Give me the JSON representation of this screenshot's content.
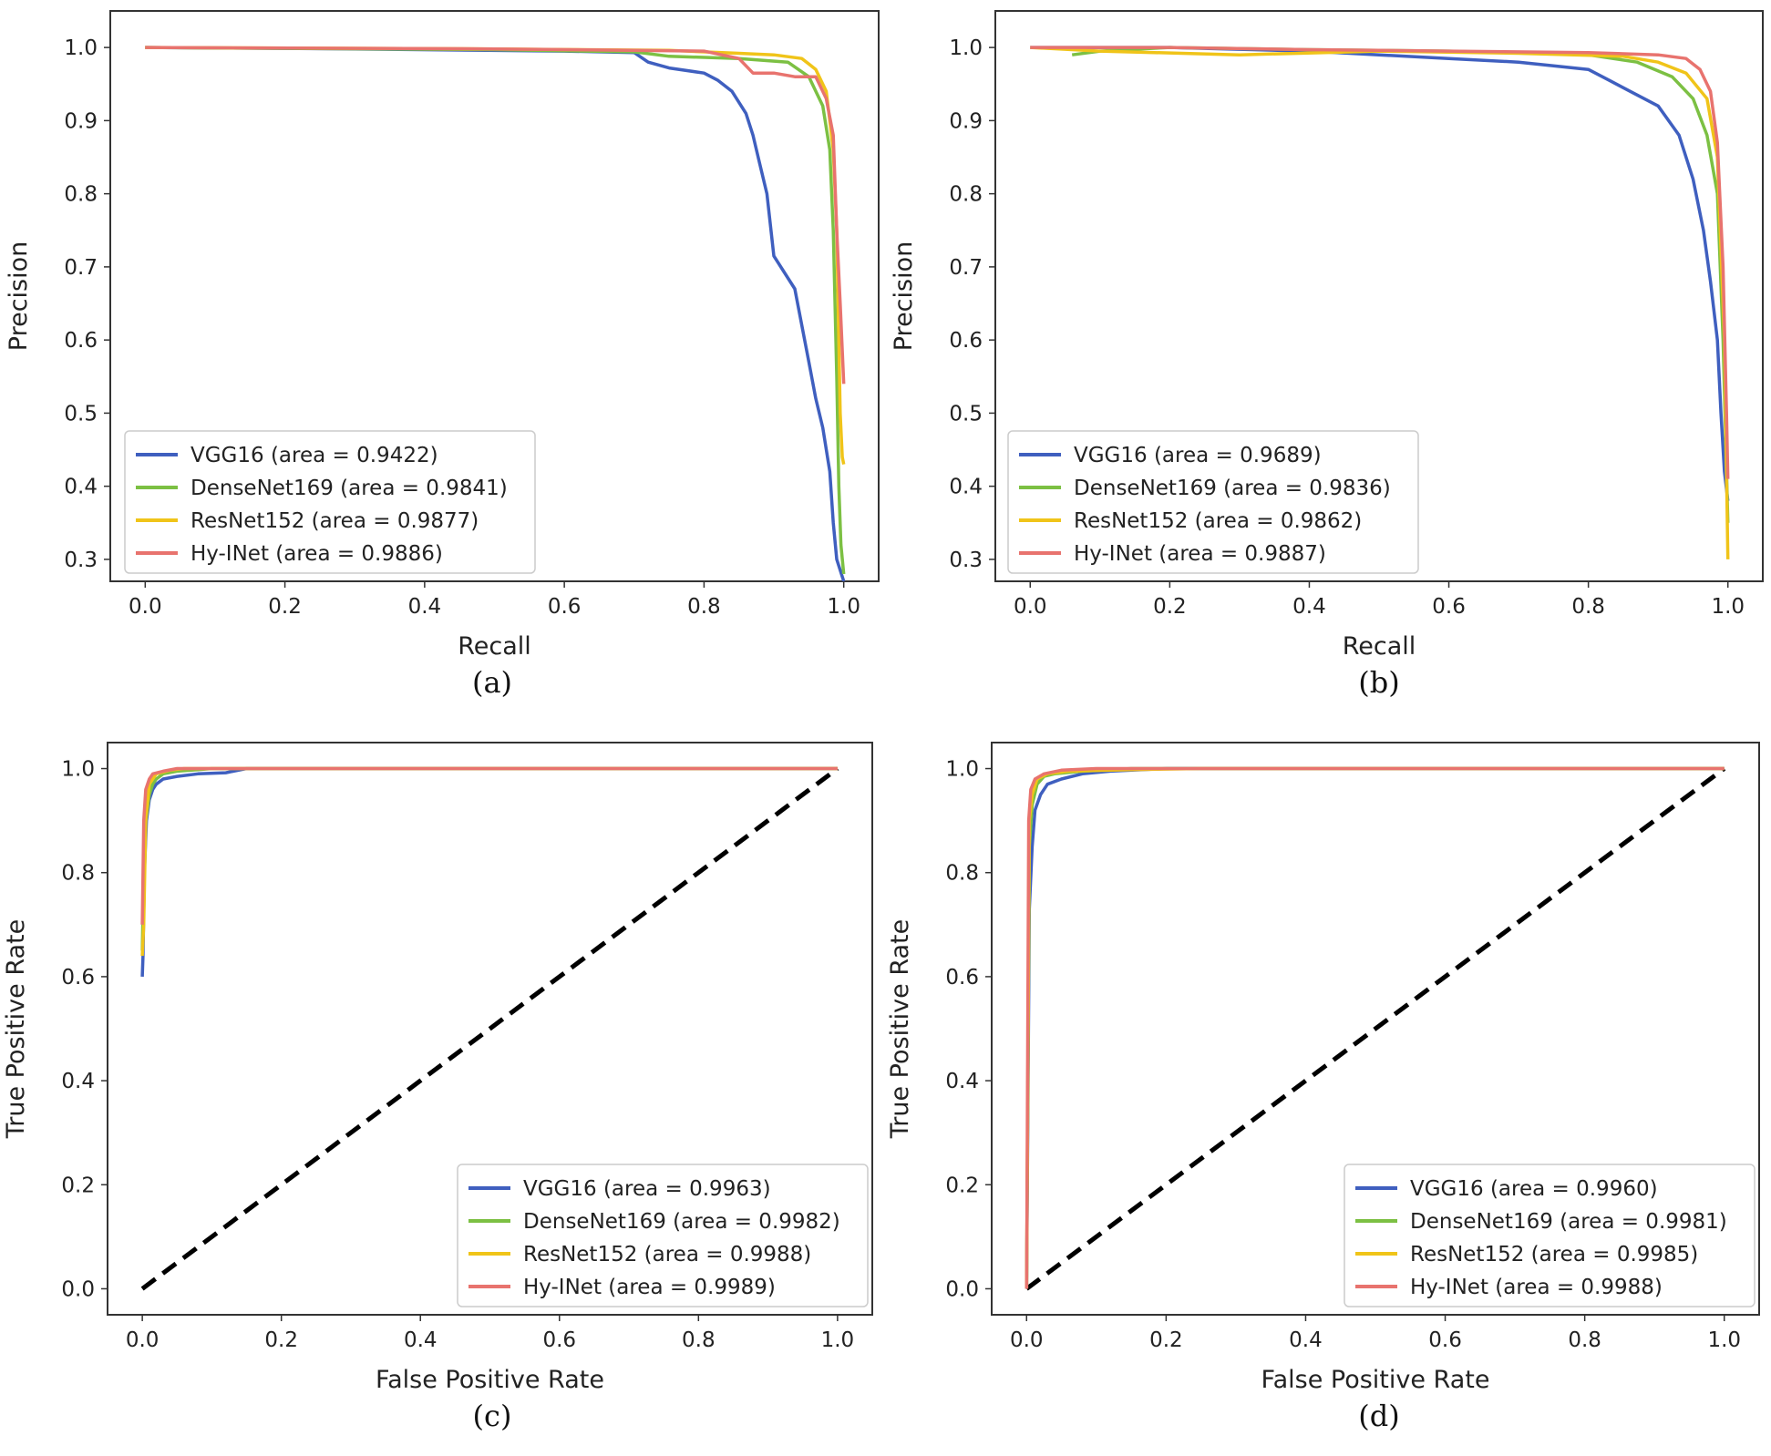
{
  "colors": {
    "VGG16": "#3f5fbf",
    "DenseNet169": "#7cc043",
    "ResNet152": "#f0c419",
    "Hy-INet": "#e8736e",
    "diagonal": "#000000"
  },
  "chart_data": [
    {
      "type": "line",
      "panel_label": "(a)",
      "xlabel": "Recall",
      "ylabel": "Precision",
      "xlim": [
        -0.05,
        1.05
      ],
      "ylim": [
        0.27,
        1.05
      ],
      "xticks": [
        0.0,
        0.2,
        0.4,
        0.6,
        0.8,
        1.0
      ],
      "yticks": [
        0.3,
        0.4,
        0.5,
        0.6,
        0.7,
        0.8,
        0.9,
        1.0
      ],
      "xtick_labels": [
        "0.0",
        "0.2",
        "0.4",
        "0.6",
        "0.8",
        "1.0"
      ],
      "ytick_labels": [
        "0.3",
        "0.4",
        "0.5",
        "0.6",
        "0.7",
        "0.8",
        "0.9",
        "1.0"
      ],
      "legend_position": "lower-left",
      "diagonal": false,
      "series": [
        {
          "name": "VGG16",
          "label": "VGG16 (area = 0.9422)",
          "x": [
            0,
            0.3,
            0.6,
            0.7,
            0.72,
            0.75,
            0.8,
            0.82,
            0.84,
            0.86,
            0.87,
            0.88,
            0.89,
            0.9,
            0.93,
            0.95,
            0.96,
            0.97,
            0.98,
            0.985,
            0.99,
            1.0
          ],
          "y": [
            1.0,
            0.998,
            0.995,
            0.993,
            0.98,
            0.972,
            0.965,
            0.955,
            0.94,
            0.91,
            0.88,
            0.84,
            0.8,
            0.715,
            0.67,
            0.57,
            0.52,
            0.48,
            0.42,
            0.35,
            0.3,
            0.27
          ]
        },
        {
          "name": "DenseNet169",
          "label": "DenseNet169 (area = 0.9841)",
          "x": [
            0,
            0.5,
            0.7,
            0.75,
            0.85,
            0.92,
            0.95,
            0.97,
            0.98,
            0.985,
            0.99,
            0.993,
            0.996,
            1.0
          ],
          "y": [
            1.0,
            0.997,
            0.994,
            0.988,
            0.985,
            0.98,
            0.96,
            0.92,
            0.86,
            0.75,
            0.55,
            0.4,
            0.32,
            0.28
          ]
        },
        {
          "name": "ResNet152",
          "label": "ResNet152 (area = 0.9877)",
          "x": [
            0,
            0.5,
            0.75,
            0.85,
            0.9,
            0.94,
            0.96,
            0.975,
            0.985,
            0.99,
            0.993,
            0.995,
            0.998,
            1.0
          ],
          "y": [
            1.0,
            0.998,
            0.996,
            0.992,
            0.99,
            0.985,
            0.97,
            0.94,
            0.86,
            0.75,
            0.6,
            0.5,
            0.44,
            0.43
          ]
        },
        {
          "name": "Hy-INet",
          "label": "Hy-INet (area = 0.9886)",
          "x": [
            0,
            0.5,
            0.8,
            0.85,
            0.87,
            0.9,
            0.93,
            0.96,
            0.975,
            0.985,
            0.99,
            0.995,
            1.0
          ],
          "y": [
            1.0,
            0.998,
            0.995,
            0.985,
            0.965,
            0.965,
            0.96,
            0.96,
            0.93,
            0.88,
            0.75,
            0.65,
            0.54
          ]
        }
      ]
    },
    {
      "type": "line",
      "panel_label": "(b)",
      "xlabel": "Recall",
      "ylabel": "Precision",
      "xlim": [
        -0.05,
        1.05
      ],
      "ylim": [
        0.27,
        1.05
      ],
      "xticks": [
        0.0,
        0.2,
        0.4,
        0.6,
        0.8,
        1.0
      ],
      "yticks": [
        0.3,
        0.4,
        0.5,
        0.6,
        0.7,
        0.8,
        0.9,
        1.0
      ],
      "xtick_labels": [
        "0.0",
        "0.2",
        "0.4",
        "0.6",
        "0.8",
        "1.0"
      ],
      "ytick_labels": [
        "0.3",
        "0.4",
        "0.5",
        "0.6",
        "0.7",
        "0.8",
        "0.9",
        "1.0"
      ],
      "legend_position": "lower-left",
      "diagonal": false,
      "series": [
        {
          "name": "VGG16",
          "label": "VGG16 (area = 0.9689)",
          "x": [
            0,
            0.2,
            0.4,
            0.5,
            0.6,
            0.7,
            0.75,
            0.8,
            0.83,
            0.86,
            0.9,
            0.93,
            0.95,
            0.965,
            0.975,
            0.985,
            0.99,
            0.995,
            1.0
          ],
          "y": [
            1.0,
            1.0,
            0.995,
            0.99,
            0.985,
            0.98,
            0.975,
            0.97,
            0.955,
            0.94,
            0.92,
            0.88,
            0.82,
            0.75,
            0.68,
            0.6,
            0.5,
            0.42,
            0.38
          ]
        },
        {
          "name": "DenseNet169",
          "label": "DenseNet169 (area = 0.9836)",
          "x": [
            0.06,
            0.1,
            0.2,
            0.4,
            0.6,
            0.8,
            0.87,
            0.92,
            0.95,
            0.97,
            0.985,
            0.993,
            1.0
          ],
          "y": [
            0.99,
            0.995,
            1.0,
            0.997,
            0.995,
            0.99,
            0.98,
            0.96,
            0.93,
            0.88,
            0.8,
            0.6,
            0.35
          ]
        },
        {
          "name": "ResNet152",
          "label": "ResNet152 (area = 0.9862)",
          "x": [
            0,
            0.1,
            0.3,
            0.5,
            0.7,
            0.85,
            0.9,
            0.94,
            0.97,
            0.985,
            0.995,
            1.0
          ],
          "y": [
            1.0,
            0.995,
            0.99,
            0.995,
            0.992,
            0.988,
            0.98,
            0.965,
            0.93,
            0.85,
            0.6,
            0.3
          ]
        },
        {
          "name": "Hy-INet",
          "label": "Hy-INet (area = 0.9887)",
          "x": [
            0,
            0.2,
            0.4,
            0.6,
            0.8,
            0.9,
            0.94,
            0.96,
            0.975,
            0.985,
            0.993,
            0.998,
            1.0
          ],
          "y": [
            1.0,
            1.0,
            0.997,
            0.995,
            0.993,
            0.99,
            0.985,
            0.97,
            0.94,
            0.87,
            0.7,
            0.5,
            0.41
          ]
        }
      ]
    },
    {
      "type": "line",
      "panel_label": "(c)",
      "xlabel": "False Positive Rate",
      "ylabel": "True Positive Rate",
      "xlim": [
        -0.05,
        1.05
      ],
      "ylim": [
        -0.05,
        1.05
      ],
      "xticks": [
        0.0,
        0.2,
        0.4,
        0.6,
        0.8,
        1.0
      ],
      "yticks": [
        0.0,
        0.2,
        0.4,
        0.6,
        0.8,
        1.0
      ],
      "xtick_labels": [
        "0.0",
        "0.2",
        "0.4",
        "0.6",
        "0.8",
        "1.0"
      ],
      "ytick_labels": [
        "0.0",
        "0.2",
        "0.4",
        "0.6",
        "0.8",
        "1.0"
      ],
      "legend_position": "lower-right",
      "diagonal": true,
      "series": [
        {
          "name": "VGG16",
          "label": "VGG16 (area = 0.9963)",
          "x": [
            0,
            0.001,
            0.003,
            0.006,
            0.01,
            0.015,
            0.02,
            0.03,
            0.05,
            0.08,
            0.12,
            0.15,
            0.3,
            1.0
          ],
          "y": [
            0.6,
            0.64,
            0.8,
            0.9,
            0.94,
            0.96,
            0.97,
            0.98,
            0.985,
            0.99,
            0.992,
            1.0,
            1.0,
            1.0
          ]
        },
        {
          "name": "DenseNet169",
          "label": "DenseNet169 (area = 0.9982)",
          "x": [
            0,
            0.002,
            0.005,
            0.01,
            0.015,
            0.02,
            0.03,
            0.05,
            0.08,
            0.1,
            1.0
          ],
          "y": [
            0.65,
            0.8,
            0.9,
            0.95,
            0.97,
            0.98,
            0.99,
            0.995,
            0.998,
            1.0,
            1.0
          ]
        },
        {
          "name": "ResNet152",
          "label": "ResNet152 (area = 0.9988)",
          "x": [
            0,
            0.002,
            0.005,
            0.01,
            0.015,
            0.02,
            0.04,
            0.06,
            1.0
          ],
          "y": [
            0.64,
            0.7,
            0.9,
            0.97,
            0.98,
            0.99,
            0.997,
            1.0,
            1.0
          ]
        },
        {
          "name": "Hy-INet",
          "label": "Hy-INet (area = 0.9989)",
          "x": [
            0,
            0.002,
            0.005,
            0.01,
            0.015,
            0.03,
            0.05,
            1.0
          ],
          "y": [
            0.7,
            0.9,
            0.96,
            0.98,
            0.99,
            0.995,
            1.0,
            1.0
          ]
        }
      ]
    },
    {
      "type": "line",
      "panel_label": "(d)",
      "xlabel": "False Positive Rate",
      "ylabel": "True Positive Rate",
      "xlim": [
        -0.05,
        1.05
      ],
      "ylim": [
        -0.05,
        1.05
      ],
      "xticks": [
        0.0,
        0.2,
        0.4,
        0.6,
        0.8,
        1.0
      ],
      "yticks": [
        0.0,
        0.2,
        0.4,
        0.6,
        0.8,
        1.0
      ],
      "xtick_labels": [
        "0.0",
        "0.2",
        "0.4",
        "0.6",
        "0.8",
        "1.0"
      ],
      "ytick_labels": [
        "0.0",
        "0.2",
        "0.4",
        "0.6",
        "0.8",
        "1.0"
      ],
      "legend_position": "lower-right",
      "diagonal": true,
      "series": [
        {
          "name": "VGG16",
          "label": "VGG16 (area = 0.9960)",
          "x": [
            0,
            0.004,
            0.008,
            0.012,
            0.02,
            0.03,
            0.05,
            0.08,
            0.12,
            0.2,
            1.0
          ],
          "y": [
            0.0,
            0.73,
            0.85,
            0.92,
            0.95,
            0.97,
            0.98,
            0.99,
            0.995,
            1.0,
            1.0
          ]
        },
        {
          "name": "DenseNet169",
          "label": "DenseNet169 (area = 0.9981)",
          "x": [
            0,
            0.004,
            0.008,
            0.015,
            0.025,
            0.04,
            0.08,
            0.15,
            1.0
          ],
          "y": [
            0.0,
            0.85,
            0.93,
            0.97,
            0.985,
            0.99,
            0.995,
            1.0,
            1.0
          ]
        },
        {
          "name": "ResNet152",
          "label": "ResNet152 (area = 0.9985)",
          "x": [
            0,
            0.004,
            0.008,
            0.015,
            0.03,
            0.06,
            0.15,
            0.25,
            1.0
          ],
          "y": [
            0.0,
            0.9,
            0.95,
            0.98,
            0.99,
            0.995,
            0.998,
            1.0,
            1.0
          ]
        },
        {
          "name": "Hy-INet",
          "label": "Hy-INet (area = 0.9988)",
          "x": [
            0,
            0.003,
            0.006,
            0.012,
            0.025,
            0.05,
            0.1,
            1.0
          ],
          "y": [
            0.0,
            0.9,
            0.96,
            0.98,
            0.99,
            0.997,
            1.0,
            1.0
          ]
        }
      ]
    }
  ]
}
